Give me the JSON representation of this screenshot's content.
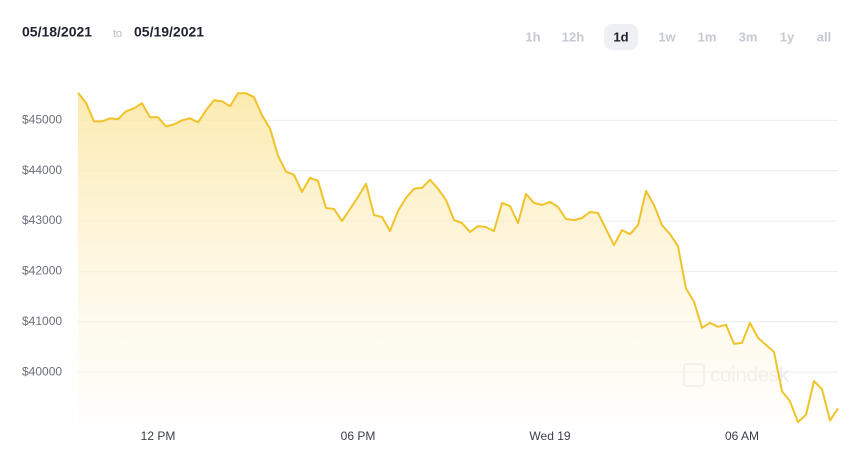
{
  "header": {
    "from": "05/18/2021",
    "to": "to",
    "until": "05/19/2021",
    "range_options": [
      "1h",
      "12h",
      "1d",
      "1w",
      "1m",
      "3m",
      "1y",
      "all"
    ],
    "selected_range": "1d"
  },
  "watermark": "coindesk",
  "chart_data": {
    "type": "line",
    "color": "#f0c32a",
    "grid": true,
    "categories": [
      null,
      null,
      null,
      null,
      null,
      null,
      null,
      null,
      null,
      null,
      "12 PM",
      null,
      null,
      null,
      null,
      null,
      null,
      null,
      null,
      null,
      null,
      null,
      null,
      null,
      null,
      null,
      null,
      null,
      null,
      null,
      null,
      null,
      null,
      null,
      null,
      "06 PM",
      null,
      null,
      null,
      null,
      null,
      null,
      null,
      null,
      null,
      null,
      null,
      null,
      null,
      null,
      null,
      null,
      null,
      null,
      null,
      null,
      null,
      null,
      null,
      "Wed 19",
      null,
      null,
      null,
      null,
      null,
      null,
      null,
      null,
      null,
      null,
      null,
      null,
      null,
      null,
      null,
      null,
      null,
      null,
      null,
      null,
      null,
      null,
      null,
      "06 AM",
      null,
      null,
      null,
      null,
      null,
      null,
      null,
      null,
      null,
      null,
      null,
      null
    ],
    "values": [
      45550,
      45350,
      44980,
      44980,
      45040,
      45020,
      45180,
      45240,
      45340,
      45060,
      45060,
      44880,
      44920,
      45000,
      45040,
      44960,
      45200,
      45400,
      45380,
      45280,
      45540,
      45540,
      45460,
      45100,
      44840,
      44300,
      43980,
      43920,
      43580,
      43860,
      43800,
      43260,
      43240,
      43000,
      43240,
      43480,
      43740,
      43120,
      43080,
      42800,
      43200,
      43460,
      43640,
      43660,
      43820,
      43640,
      43420,
      43020,
      42960,
      42780,
      42900,
      42880,
      42800,
      43360,
      43300,
      42960,
      43540,
      43360,
      43320,
      43380,
      43280,
      43040,
      43020,
      43060,
      43180,
      43160,
      42840,
      42520,
      42820,
      42740,
      42920,
      43600,
      43320,
      42920,
      42740,
      42500,
      41660,
      41400,
      40880,
      40980,
      40900,
      40940,
      40560,
      40580,
      40980,
      40680,
      40540,
      40400,
      39620,
      39420,
      39010,
      39150,
      39820,
      39660,
      39040,
      39280
    ],
    "ylim": [
      38950,
      46000
    ],
    "yticks": [
      {
        "value": 40000,
        "label": "$40000"
      },
      {
        "value": 41000,
        "label": "$41000"
      },
      {
        "value": 42000,
        "label": "$42000"
      },
      {
        "value": 43000,
        "label": "$43000"
      },
      {
        "value": 44000,
        "label": "$44000"
      },
      {
        "value": 45000,
        "label": "$45000"
      }
    ]
  }
}
